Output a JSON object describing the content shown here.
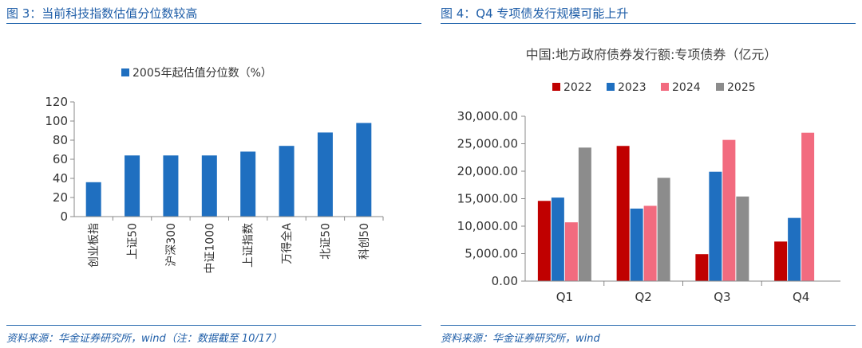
{
  "left_panel": {
    "title": "图 3：当前科技指数估值分位数较高",
    "source": "资料来源：华金证券研究所，wind（注：数据截至 10/17）"
  },
  "right_panel": {
    "title": "图 4：Q4 专项债发行规模可能上升",
    "source": "资料来源：华金证券研究所，wind"
  },
  "colors": {
    "header": "#1f5ea8",
    "left_bar": "#1f6fc0",
    "s2022": "#c00000",
    "s2023": "#1f6fc0",
    "s2024": "#f26b7f",
    "s2025": "#8c8c8c"
  },
  "chart_data": [
    {
      "type": "bar",
      "title": "",
      "legend": [
        "2005年起估值分位数（%）"
      ],
      "categories": [
        "创业板指",
        "上证50",
        "沪深300",
        "中证1000",
        "上证指数",
        "万得全A",
        "北证50",
        "科创50"
      ],
      "values": [
        36,
        64,
        64,
        64,
        68,
        74,
        88,
        98
      ],
      "ylim": [
        0,
        120
      ],
      "yticks": [
        "0",
        "20",
        "40",
        "60",
        "80",
        "100",
        "120"
      ],
      "xlabel": "",
      "ylabel": ""
    },
    {
      "type": "bar",
      "title": "中国:地方政府债券发行额:专项债券（亿元）",
      "categories": [
        "Q1",
        "Q2",
        "Q3",
        "Q4"
      ],
      "series": [
        {
          "name": "2022",
          "values": [
            14600,
            24600,
            4900,
            7200
          ]
        },
        {
          "name": "2023",
          "values": [
            15200,
            13200,
            19900,
            11500
          ]
        },
        {
          "name": "2024",
          "values": [
            10700,
            13700,
            25700,
            27000
          ]
        },
        {
          "name": "2025",
          "values": [
            24300,
            18800,
            15400,
            null
          ]
        }
      ],
      "ylim": [
        0,
        30000
      ],
      "yticks": [
        "0.00",
        "5,000.00",
        "10,000.00",
        "15,000.00",
        "20,000.00",
        "25,000.00",
        "30,000.00"
      ],
      "xlabel": "",
      "ylabel": ""
    }
  ]
}
